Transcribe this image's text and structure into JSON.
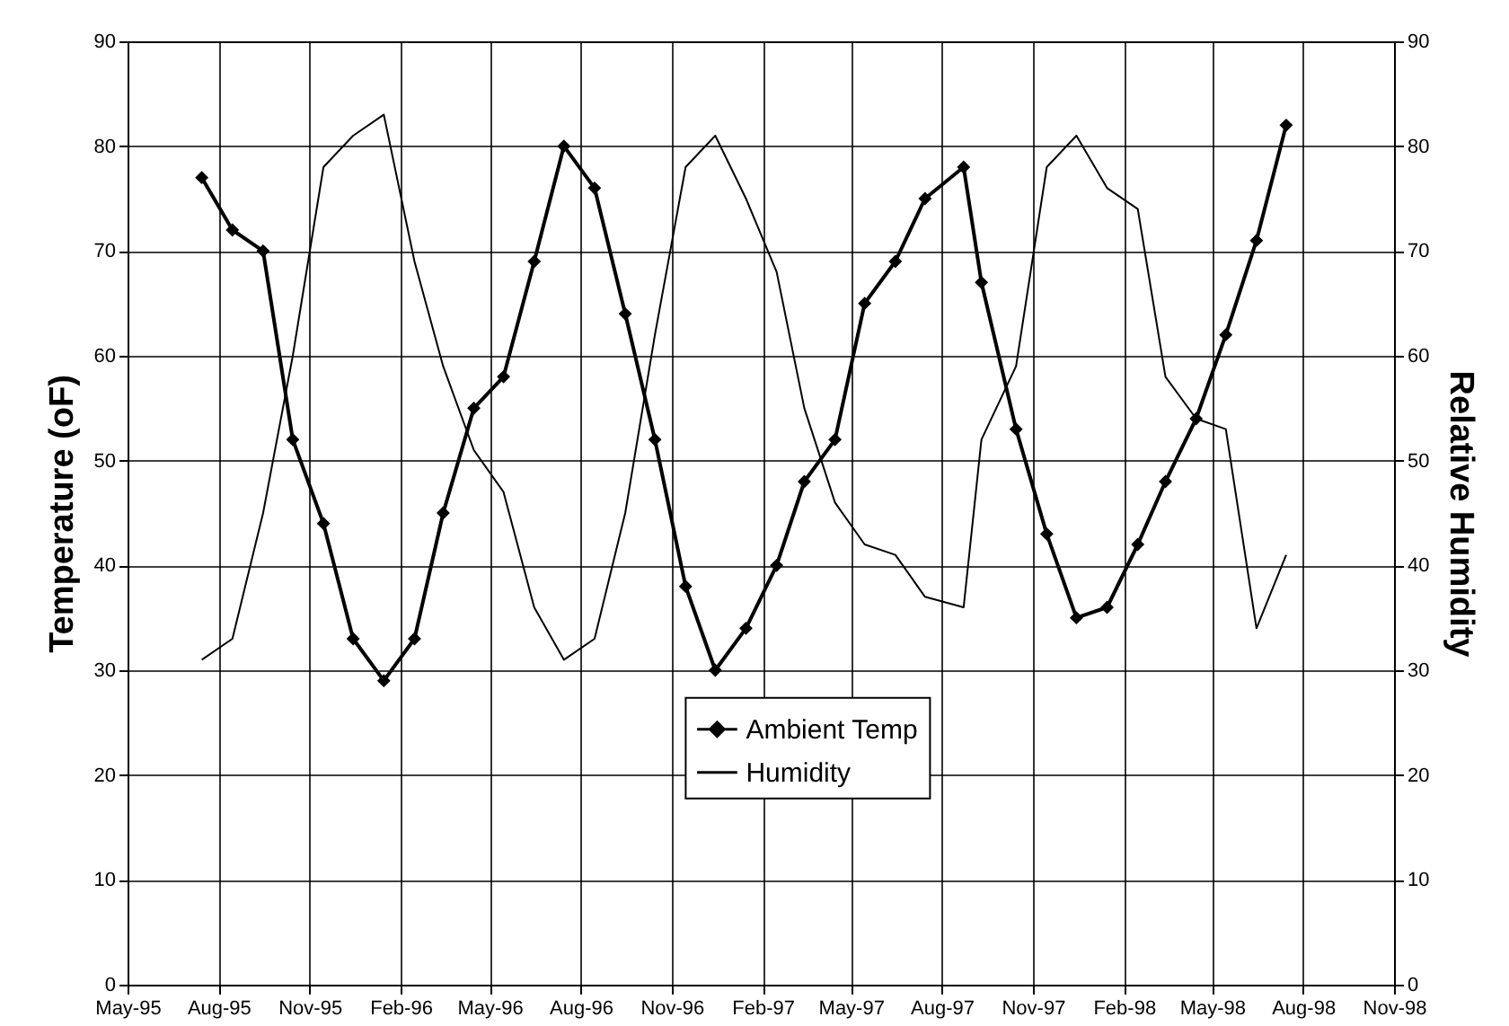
{
  "chart_data": {
    "type": "line",
    "ylabel": "Temperature (oF)",
    "y2label": "Relative Humidity",
    "x": [
      "1995-07-15",
      "1995-08-15",
      "1995-09-15",
      "1995-10-15",
      "1995-11-15",
      "1995-12-15",
      "1996-01-15",
      "1996-02-15",
      "1996-03-15",
      "1996-04-15",
      "1996-05-15",
      "1996-06-15",
      "1996-07-15",
      "1996-08-15",
      "1996-09-15",
      "1996-10-15",
      "1996-11-15",
      "1996-12-15",
      "1997-01-15",
      "1997-02-15",
      "1997-03-15",
      "1997-04-15",
      "1997-05-15",
      "1997-06-15",
      "1997-07-15",
      "1997-08-23",
      "1997-09-10",
      "1997-10-15",
      "1997-11-15",
      "1997-12-15",
      "1998-01-15",
      "1998-02-15",
      "1998-03-15",
      "1998-04-15",
      "1998-05-15",
      "1998-06-15",
      "1998-07-15"
    ],
    "series": [
      {
        "name": "Ambient Temp",
        "color": "#000000",
        "marker": "diamond",
        "values": [
          77,
          72,
          70,
          52,
          44,
          33,
          29,
          33,
          45,
          55,
          58,
          69,
          80,
          76,
          64,
          52,
          38,
          30,
          34,
          40,
          48,
          52,
          65,
          69,
          75,
          78,
          67,
          53,
          43,
          35,
          36,
          42,
          48,
          54,
          62,
          71,
          82
        ]
      },
      {
        "name": "Humidity",
        "color": "#000000",
        "marker": "none",
        "axis": "y2",
        "values": [
          31,
          33,
          45,
          60,
          78,
          81,
          83,
          69,
          59,
          51,
          47,
          36,
          31,
          33,
          45,
          62,
          78,
          81,
          75,
          68,
          55,
          46,
          42,
          41,
          37,
          36,
          52,
          59,
          78,
          81,
          76,
          74,
          58,
          54,
          53,
          34,
          41
        ]
      }
    ],
    "xlim": [
      "1995-05-01",
      "1998-11-01"
    ],
    "xticks": [
      {
        "value": "1995-05-01",
        "label": "May-95"
      },
      {
        "value": "1995-08-01",
        "label": "Aug-95"
      },
      {
        "value": "1995-11-01",
        "label": "Nov-95"
      },
      {
        "value": "1996-02-01",
        "label": "Feb-96"
      },
      {
        "value": "1996-05-01",
        "label": "May-96"
      },
      {
        "value": "1996-08-01",
        "label": "Aug-96"
      },
      {
        "value": "1996-11-01",
        "label": "Nov-96"
      },
      {
        "value": "1997-02-01",
        "label": "Feb-97"
      },
      {
        "value": "1997-05-01",
        "label": "May-97"
      },
      {
        "value": "1997-08-01",
        "label": "Aug-97"
      },
      {
        "value": "1997-11-01",
        "label": "Nov-97"
      },
      {
        "value": "1998-02-01",
        "label": "Feb-98"
      },
      {
        "value": "1998-05-01",
        "label": "May-98"
      },
      {
        "value": "1998-08-01",
        "label": "Aug-98"
      },
      {
        "value": "1998-11-01",
        "label": "Nov-98"
      }
    ],
    "ylim": [
      0,
      90
    ],
    "yticks": [
      0,
      10,
      20,
      30,
      40,
      50,
      60,
      70,
      80,
      90
    ],
    "y2lim": [
      0,
      90
    ],
    "y2ticks": [
      0,
      10,
      20,
      30,
      40,
      50,
      60,
      70,
      80,
      90
    ],
    "grid": true,
    "legend": "bottom"
  }
}
